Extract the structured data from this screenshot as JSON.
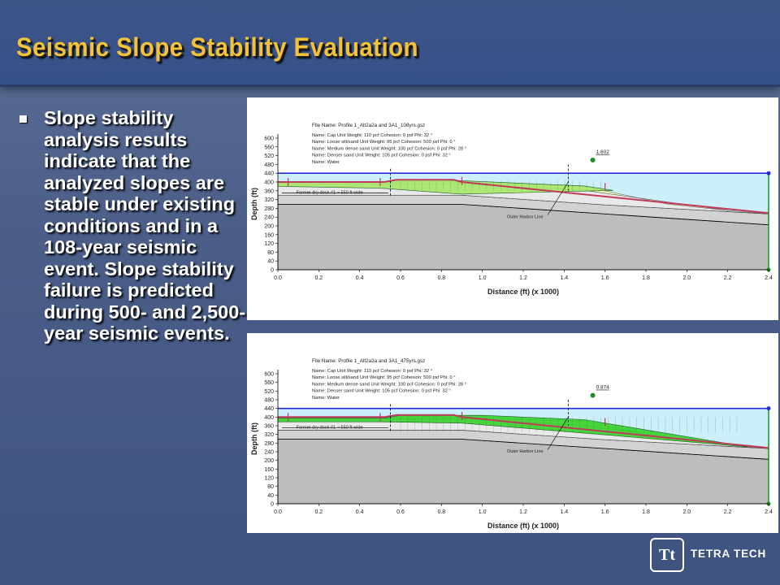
{
  "slide": {
    "title": "Seismic Slope Stability Evaluation",
    "bullet": "Slope stability analysis results indicate that the analyzed slopes are stable under existing conditions and in a 108-year seismic event. Slope stability failure is predicted during 500- and 2,500-year seismic events."
  },
  "logo": {
    "mark": "Tt",
    "text": "TETRA TECH"
  },
  "figures": [
    {
      "file_name": "File Name: Profile 1_Alt2a2a and 3A1_108yrs.gsz",
      "materials": [
        "Name: Cap    Unit Weight: 110 pcf    Cohesion: 0 psf    Phi: 32 °",
        "Name: Loose silt/sand    Unit Weight: 95 pcf    Cohesion: 500 psf    Phi: 0 °",
        "Name: Medium dense sand    Unit Weight: 100 pcf    Cohesion: 0 psf    Phi: 28 °",
        "Name: Denser sand    Unit Weight: 105 pcf    Cohesion: 0 psf    Phi: 32 °",
        "Name: Water"
      ],
      "factor_of_safety": "1.602",
      "dock_label": "Former dry dock #1 ~ 550 ft wide",
      "harbor_label": "Outer Harbor Line",
      "y_axis_label": "Depth (ft)",
      "x_axis_label": "Distance (ft)  (x  1000)",
      "y_ticks": [
        "600",
        "560",
        "520",
        "480",
        "440",
        "400",
        "360",
        "320",
        "280",
        "240",
        "200",
        "160",
        "120",
        "80",
        "40",
        "0"
      ],
      "x_ticks": [
        "0.0",
        "0.2",
        "0.4",
        "0.6",
        "0.8",
        "1.0",
        "1.2",
        "1.4",
        "1.6",
        "1.8",
        "2.0",
        "2.2",
        "2.4"
      ],
      "failure_fill": "#a6e86a"
    },
    {
      "file_name": "File Name: Profile 1_Alt2a2a and 3A1_475yrs.gsz",
      "materials": [
        "Name: Cap    Unit Weight: 110 pcf    Cohesion: 0 psf    Phi: 32 °",
        "Name: Loose silt/sand    Unit Weight: 95 pcf    Cohesion: 500 psf    Phi: 0 °",
        "Name: Medium dense sand    Unit Weight: 100 pcf    Cohesion: 0 psf    Phi: 28 °",
        "Name: Denser sand    Unit Weight: 105 pcf    Cohesion: 0 psf    Phi: 32 °",
        "Name: Water"
      ],
      "factor_of_safety": "0.874",
      "dock_label": "Former dry dock #1 ~ 550 ft wide",
      "harbor_label": "Outer Harbor Line",
      "y_axis_label": "Depth (ft)",
      "x_axis_label": "Distance (ft)  (x  1000)",
      "y_ticks": [
        "600",
        "560",
        "520",
        "480",
        "440",
        "400",
        "360",
        "320",
        "280",
        "240",
        "200",
        "160",
        "120",
        "80",
        "40",
        "0"
      ],
      "x_ticks": [
        "0.0",
        "0.2",
        "0.4",
        "0.6",
        "0.8",
        "1.0",
        "1.2",
        "1.4",
        "1.6",
        "1.8",
        "2.0",
        "2.2",
        "2.4"
      ],
      "failure_fill": "#35d12c"
    }
  ],
  "colors": {
    "water": "#cdeefb",
    "cap": "#eef7b6",
    "loose": "#e9e9e9",
    "medium": "#d2d2d2",
    "denser": "#bdbdbd",
    "profile_line": "#c23a5a",
    "boundary_blue": "#2b2bd6",
    "green_marker": "#1e8c2a"
  }
}
